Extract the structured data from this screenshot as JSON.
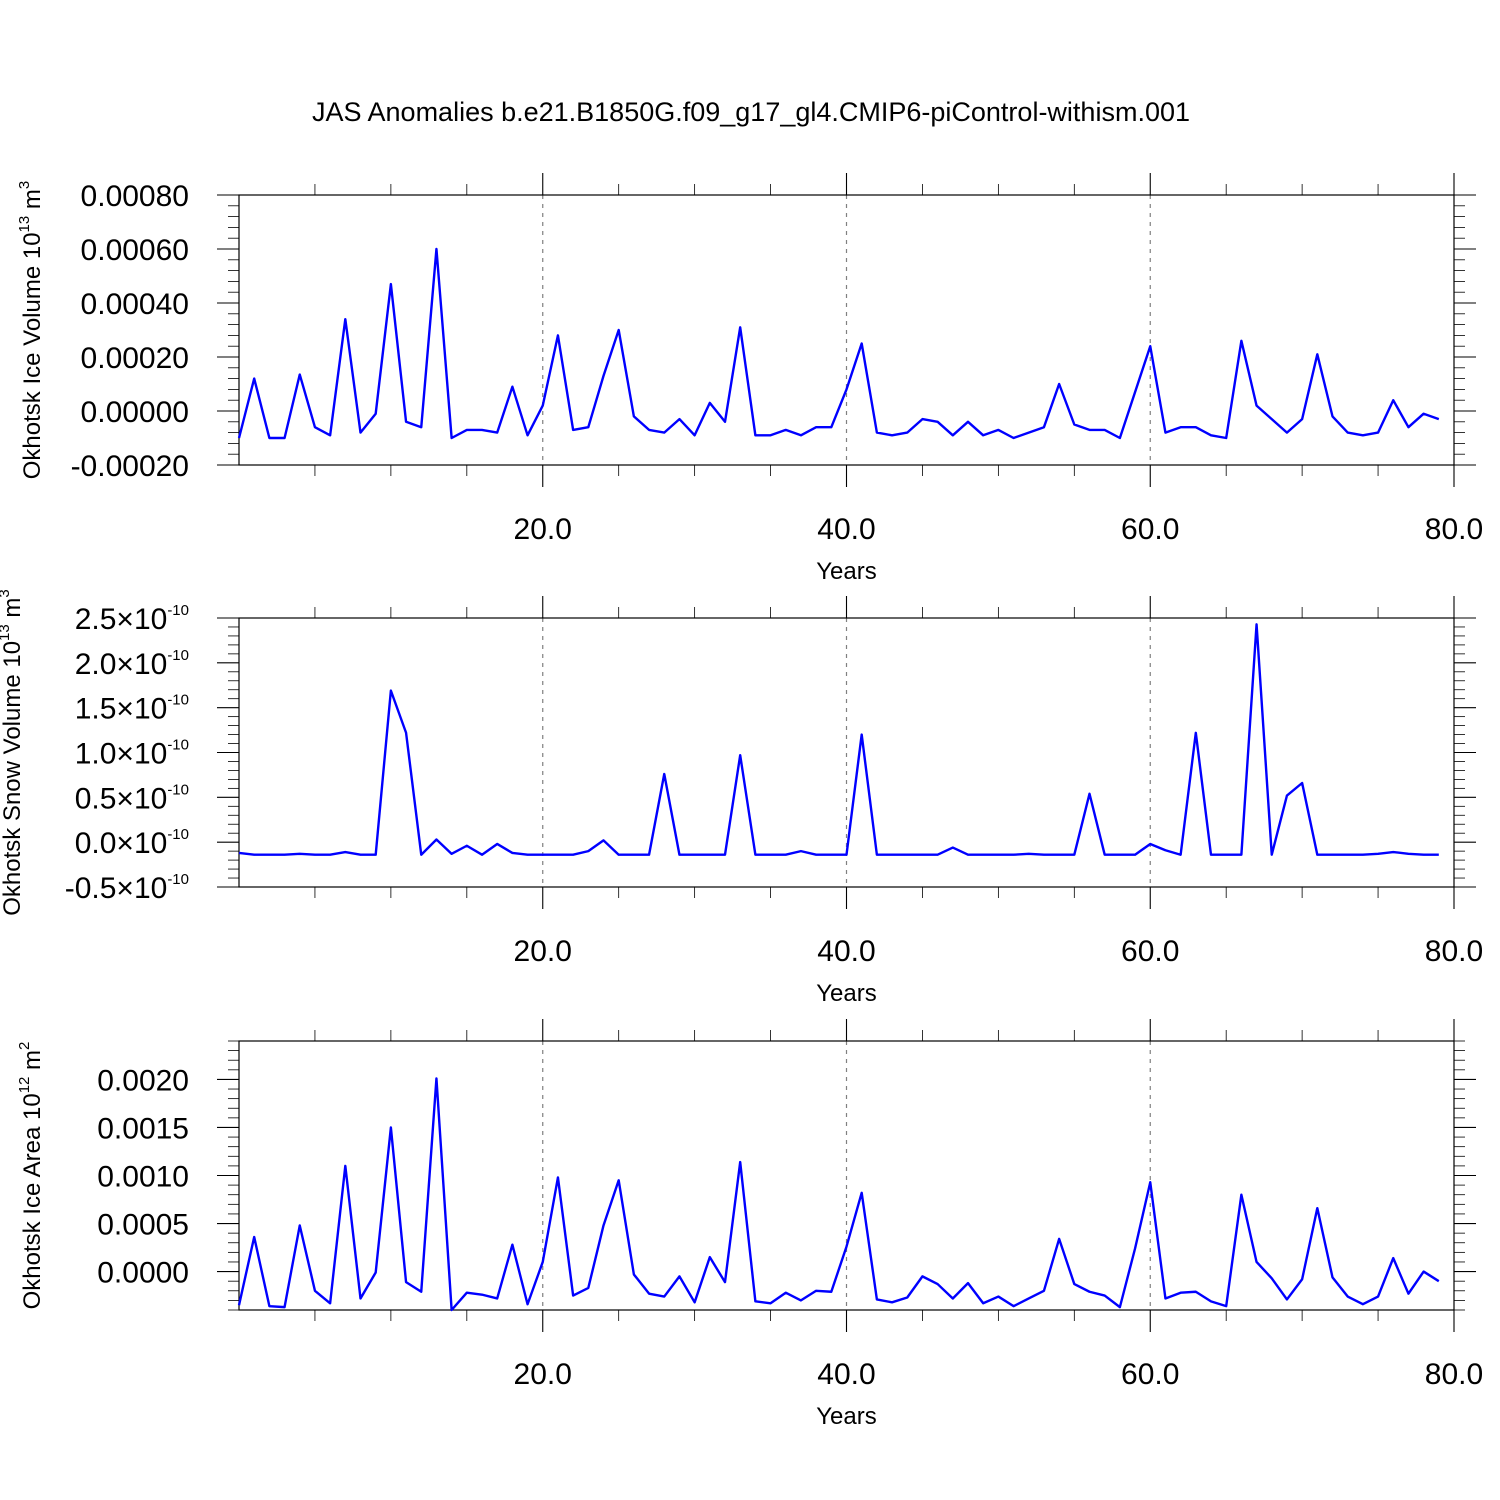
{
  "title": "JAS Anomalies b.e21.B1850G.f09_g17_gl4.CMIP6-piControl-withism.001",
  "colors": {
    "line": "#0000ff",
    "gridline": "#808080",
    "axes": "#000000"
  },
  "chart_data": [
    {
      "type": "line",
      "xlabel": "Years",
      "ylabel": {
        "text": "Okhotsk Ice Volume 10",
        "exp": "13",
        "unit_text": " m",
        "unit_exp": "3"
      },
      "xlim": [
        0,
        80
      ],
      "ylim": [
        -0.0002,
        0.0008
      ],
      "xticks": [
        20,
        40,
        60,
        80
      ],
      "xtick_labels": [
        "20.0",
        "40.0",
        "60.0",
        "80.0"
      ],
      "yticks": [
        -0.0002,
        0,
        0.0002,
        0.0004,
        0.0006,
        0.0008
      ],
      "ytick_labels": [
        "-0.00020",
        "0.00000",
        "0.00020",
        "0.00040",
        "0.00060",
        "0.00080"
      ],
      "vlines": [
        20,
        40,
        60
      ],
      "x_start": 0,
      "series": [
        {
          "values": [
            -0.0001,
            0.00012,
            -0.0001,
            -0.0001,
            0.000135,
            -6e-05,
            -9e-05,
            0.00034,
            -8e-05,
            -1e-05,
            0.00047,
            -4e-05,
            -6e-05,
            0.0006,
            -0.0001,
            -7e-05,
            -7e-05,
            -8e-05,
            9e-05,
            -9e-05,
            2e-05,
            0.00028,
            -7e-05,
            -6e-05,
            0.00013,
            0.0003,
            -2e-05,
            -7e-05,
            -8e-05,
            -3e-05,
            -9e-05,
            3e-05,
            -4e-05,
            0.00031,
            -9e-05,
            -9e-05,
            -7e-05,
            -9e-05,
            -6e-05,
            -6e-05,
            8e-05,
            0.00025,
            -8e-05,
            -9e-05,
            -8e-05,
            -3e-05,
            -4e-05,
            -9e-05,
            -4e-05,
            -9e-05,
            -7e-05,
            -0.0001,
            -8e-05,
            -6e-05,
            0.0001,
            -5e-05,
            -7e-05,
            -7e-05,
            -0.0001,
            7e-05,
            0.00024,
            -8e-05,
            -6e-05,
            -6e-05,
            -9e-05,
            -0.0001,
            0.00026,
            2e-05,
            -3e-05,
            -8e-05,
            -3e-05,
            0.00021,
            -2e-05,
            -8e-05,
            -9e-05,
            -8e-05,
            4e-05,
            -6e-05,
            -1e-05,
            -3e-05
          ]
        }
      ]
    },
    {
      "type": "line",
      "xlabel": "Years",
      "ylabel": {
        "text": "Okhotsk Snow Volume 10",
        "exp": "13",
        "unit_text": " m",
        "unit_exp": "3"
      },
      "xlim": [
        0,
        80
      ],
      "ylim": [
        -5e-11,
        2.5e-10
      ],
      "xticks": [
        20,
        40,
        60,
        80
      ],
      "xtick_labels": [
        "20.0",
        "40.0",
        "60.0",
        "80.0"
      ],
      "yticks": [
        -5e-11,
        0,
        5e-11,
        1e-10,
        1.5e-10,
        2e-10,
        2.5e-10
      ],
      "ytick_labels": [
        {
          "mant": "-0.5",
          "exp": "-10"
        },
        {
          "mant": "0.0",
          "exp": "-10"
        },
        {
          "mant": "0.5",
          "exp": "-10"
        },
        {
          "mant": "1.0",
          "exp": "-10"
        },
        {
          "mant": "1.5",
          "exp": "-10"
        },
        {
          "mant": "2.0",
          "exp": "-10"
        },
        {
          "mant": "2.5",
          "exp": "-10"
        }
      ],
      "tick_times": "×10",
      "vlines": [
        20,
        40,
        60
      ],
      "x_start": 0,
      "series": [
        {
          "values": [
            -1.2e-11,
            -1.4e-11,
            -1.4e-11,
            -1.4e-11,
            -1.3e-11,
            -1.4e-11,
            -1.4e-11,
            -1.1e-11,
            -1.4e-11,
            -1.4e-11,
            1.69e-10,
            1.22e-10,
            -1.4e-11,
            3e-12,
            -1.3e-11,
            -4e-12,
            -1.4e-11,
            -2e-12,
            -1.2e-11,
            -1.4e-11,
            -1.4e-11,
            -1.4e-11,
            -1.4e-11,
            -1e-11,
            2e-12,
            -1.4e-11,
            -1.4e-11,
            -1.4e-11,
            7.6e-11,
            -1.4e-11,
            -1.4e-11,
            -1.4e-11,
            -1.4e-11,
            9.7e-11,
            -1.4e-11,
            -1.4e-11,
            -1.4e-11,
            -1e-11,
            -1.4e-11,
            -1.4e-11,
            -1.4e-11,
            1.2e-10,
            -1.4e-11,
            -1.4e-11,
            -1.4e-11,
            -1.4e-11,
            -1.4e-11,
            -6e-12,
            -1.4e-11,
            -1.4e-11,
            -1.4e-11,
            -1.4e-11,
            -1.3e-11,
            -1.4e-11,
            -1.4e-11,
            -1.4e-11,
            5.4e-11,
            -1.4e-11,
            -1.4e-11,
            -1.4e-11,
            -2e-12,
            -9e-12,
            -1.4e-11,
            1.22e-10,
            -1.4e-11,
            -1.4e-11,
            -1.4e-11,
            2.43e-10,
            -1.4e-11,
            5.2e-11,
            6.6e-11,
            -1.4e-11,
            -1.4e-11,
            -1.4e-11,
            -1.4e-11,
            -1.3e-11,
            -1.1e-11,
            -1.3e-11,
            -1.4e-11,
            -1.4e-11
          ]
        }
      ]
    },
    {
      "type": "line",
      "xlabel": "Years",
      "ylabel": {
        "text": "Okhotsk Ice Area 10",
        "exp": "12",
        "unit_text": " m",
        "unit_exp": "2"
      },
      "xlim": [
        0,
        80
      ],
      "ylim": [
        -0.0004,
        0.0024
      ],
      "xticks": [
        20,
        40,
        60,
        80
      ],
      "xtick_labels": [
        "20.0",
        "40.0",
        "60.0",
        "80.0"
      ],
      "yticks": [
        0,
        0.0005,
        0.001,
        0.0015,
        0.002
      ],
      "ytick_labels": [
        "0.0000",
        "0.0005",
        "0.0010",
        "0.0015",
        "0.0020"
      ],
      "vlines": [
        20,
        40,
        60
      ],
      "x_start": 0,
      "series": [
        {
          "values": [
            -0.00035,
            0.00036,
            -0.00036,
            -0.00037,
            0.00048,
            -0.0002,
            -0.00033,
            0.0011,
            -0.00028,
            -1e-05,
            0.0015,
            -0.00011,
            -0.00021,
            0.00201,
            -0.0004,
            -0.00022,
            -0.00024,
            -0.00028,
            0.00028,
            -0.00034,
            0.0001,
            0.00098,
            -0.00025,
            -0.00017,
            0.00048,
            0.00095,
            -3e-05,
            -0.00023,
            -0.00026,
            -5e-05,
            -0.00032,
            0.00015,
            -0.00011,
            0.00114,
            -0.00031,
            -0.00033,
            -0.00022,
            -0.0003,
            -0.0002,
            -0.00021,
            0.00026,
            0.00082,
            -0.00029,
            -0.00032,
            -0.00027,
            -5e-05,
            -0.00013,
            -0.00028,
            -0.00012,
            -0.00033,
            -0.00026,
            -0.00036,
            -0.00028,
            -0.0002,
            0.00034,
            -0.00013,
            -0.00021,
            -0.00025,
            -0.00037,
            0.00024,
            0.00093,
            -0.00028,
            -0.00022,
            -0.00021,
            -0.00031,
            -0.00036,
            0.0008,
            0.0001,
            -7e-05,
            -0.00029,
            -8e-05,
            0.00066,
            -6e-05,
            -0.00026,
            -0.00034,
            -0.00026,
            0.00014,
            -0.00023,
            0.0,
            -0.0001
          ]
        }
      ]
    }
  ]
}
